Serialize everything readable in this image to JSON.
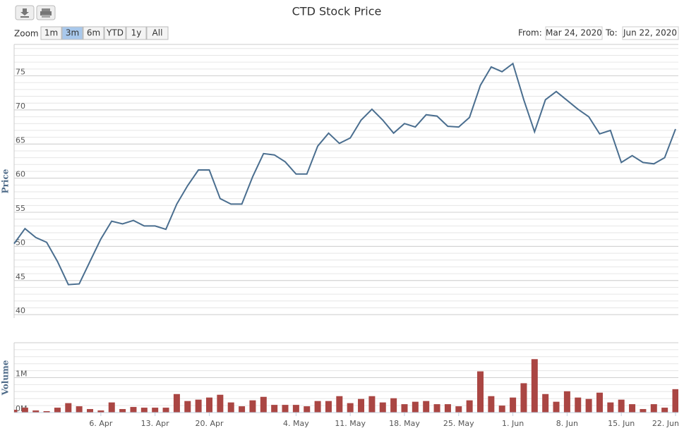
{
  "range_selector": {
    "label": "Zoom",
    "buttons": [
      "1m",
      "3m",
      "6m",
      "YTD",
      "1y",
      "All"
    ],
    "selected": 1,
    "from_label": "From:",
    "from": "Mar 24, 2020",
    "to_label": "To:",
    "to": "Jun 22, 2020"
  },
  "chart_data": {
    "type": "stock",
    "title": "CTD Stock Price",
    "categories": [
      null,
      null,
      null,
      null,
      null,
      null,
      null,
      null,
      "6. Apr",
      null,
      null,
      null,
      null,
      "13. Apr",
      null,
      null,
      null,
      null,
      "20. Apr",
      null,
      null,
      null,
      null,
      null,
      null,
      null,
      "4. May",
      null,
      null,
      null,
      null,
      "11. May",
      null,
      null,
      null,
      null,
      "18. May",
      null,
      null,
      null,
      null,
      "25. May",
      null,
      null,
      null,
      null,
      "1. Jun",
      null,
      null,
      null,
      null,
      "8. Jun",
      null,
      null,
      null,
      null,
      "15. Jun",
      null,
      null,
      null,
      null,
      "22. Jun"
    ],
    "panes": [
      {
        "type": "line",
        "ylabel": "Price",
        "color": "#4a6e8f",
        "ylim": [
          39.5,
          79.6
        ],
        "yticks": [
          40,
          45,
          50,
          55,
          60,
          65,
          70,
          75
        ],
        "minor_tick_interval": 1,
        "values": [
          50.4,
          52.6,
          51.3,
          50.6,
          47.8,
          44.4,
          44.5,
          47.8,
          51.1,
          53.7,
          53.3,
          53.8,
          53.0,
          53.0,
          52.5,
          56.2,
          58.9,
          61.2,
          61.2,
          57.0,
          56.2,
          56.2,
          60.2,
          63.6,
          63.4,
          62.4,
          60.6,
          60.6,
          64.7,
          66.6,
          65.1,
          65.9,
          68.5,
          70.1,
          68.5,
          66.6,
          68.0,
          67.5,
          69.3,
          69.1,
          67.6,
          67.5,
          68.9,
          73.6,
          76.3,
          75.6,
          76.8,
          71.5,
          66.8,
          71.5,
          72.7,
          71.4,
          70.1,
          69.0,
          66.5,
          67.0,
          62.3,
          63.3,
          62.3,
          62.1,
          63.0,
          67.2
        ]
      },
      {
        "type": "bar",
        "ylabel": "Volume",
        "color": "#aa4643",
        "ylim": [
          0,
          2000000
        ],
        "yticks": [
          {
            "value": 0,
            "label": "0M"
          },
          {
            "value": 1000000,
            "label": "1M"
          }
        ],
        "minor_tick_interval": 200000,
        "values": [
          80000,
          140000,
          60000,
          40000,
          140000,
          270000,
          180000,
          100000,
          60000,
          290000,
          100000,
          160000,
          140000,
          140000,
          140000,
          530000,
          330000,
          370000,
          430000,
          510000,
          290000,
          180000,
          350000,
          450000,
          220000,
          220000,
          220000,
          180000,
          330000,
          330000,
          470000,
          270000,
          390000,
          470000,
          290000,
          410000,
          240000,
          310000,
          330000,
          240000,
          240000,
          180000,
          350000,
          1180000,
          470000,
          200000,
          430000,
          840000,
          1530000,
          530000,
          310000,
          610000,
          430000,
          390000,
          570000,
          290000,
          370000,
          240000,
          100000,
          240000,
          140000,
          670000
        ]
      }
    ]
  }
}
